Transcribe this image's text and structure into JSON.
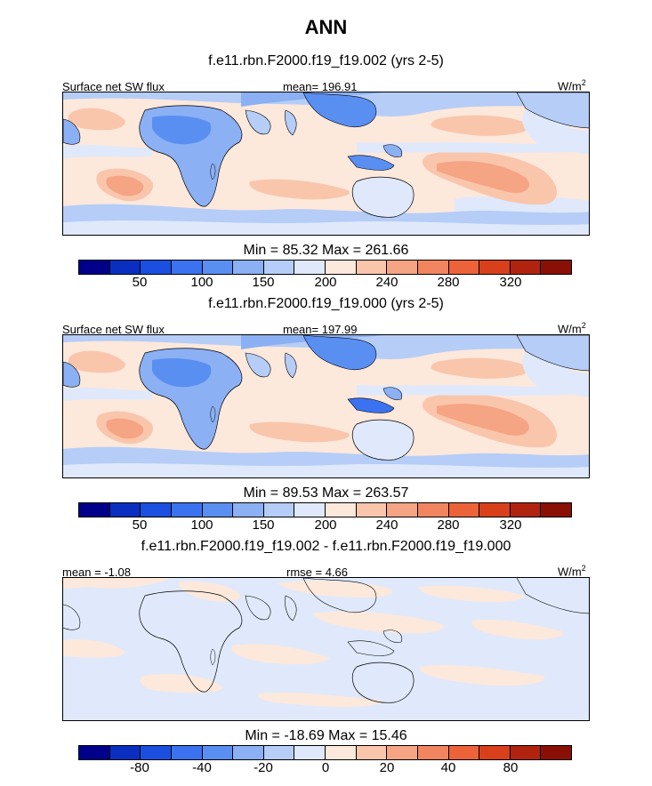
{
  "title": "ANN",
  "units_label": "W/m",
  "units_sup": "2",
  "colors": {
    "colorbar": [
      "#00008b",
      "#0a2fc0",
      "#1a4fe0",
      "#3a72ef",
      "#5a8ff2",
      "#8bb0f4",
      "#b5cdf7",
      "#dfe9fb",
      "#fde8dc",
      "#f9c6ac",
      "#f5a484",
      "#f18560",
      "#ec6339",
      "#d8401c",
      "#b0240f",
      "#8a1005"
    ],
    "ocean_mid": "#fbd9c5",
    "land_blue": "#7fa3ec",
    "coast": "#000000"
  },
  "panels": [
    {
      "title": "f.e11.rbn.F2000.f19_f19.002 (yrs 2-5)",
      "left_label": "Surface net SW flux",
      "center_label": "mean= 196.91",
      "minmax": "Min =  85.32 Max = 261.66",
      "colorbar_ticks": [
        "50",
        "100",
        "150",
        "200",
        "240",
        "280",
        "320"
      ]
    },
    {
      "title": "f.e11.rbn.F2000.f19_f19.000 (yrs 2-5)",
      "left_label": "Surface net SW flux",
      "center_label": "mean= 197.99",
      "minmax": "Min =  89.53 Max = 263.57",
      "colorbar_ticks": [
        "50",
        "100",
        "150",
        "200",
        "240",
        "280",
        "320"
      ]
    },
    {
      "title": "f.e11.rbn.F2000.f19_f19.002 - f.e11.rbn.F2000.f19_f19.000",
      "left_label": "mean =  -1.08",
      "center_label": "rmse =   4.66",
      "minmax": "Min = -18.69 Max =  15.46",
      "colorbar_ticks": [
        "-80",
        "-40",
        "-20",
        "0",
        "20",
        "40",
        "80"
      ]
    }
  ]
}
